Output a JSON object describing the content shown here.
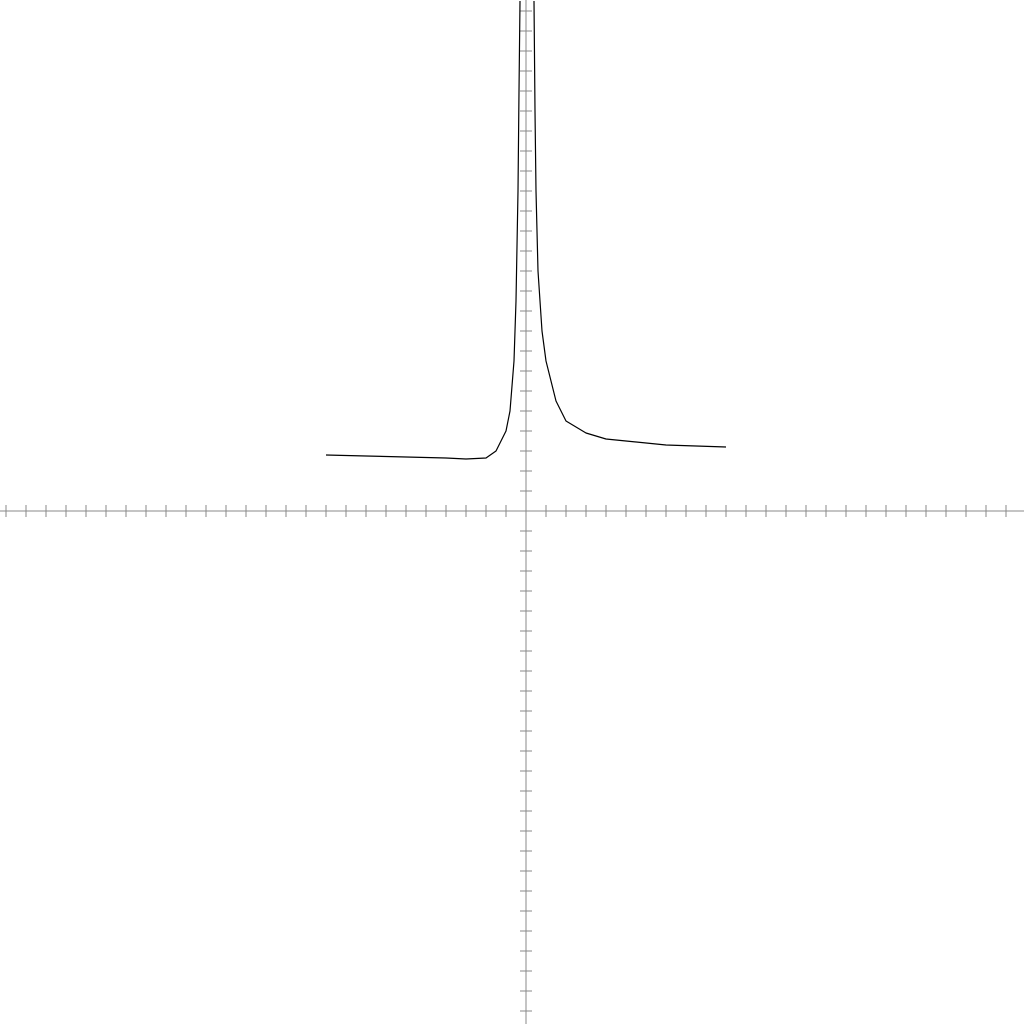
{
  "chart_data": {
    "type": "line",
    "x": [
      -10,
      -8,
      -6,
      -4,
      -3,
      -2,
      -1.5,
      -1,
      -0.8,
      -0.6,
      -0.5,
      -0.4,
      -0.35,
      -0.3,
      null,
      0.4,
      0.45,
      0.5,
      0.6,
      0.8,
      1,
      1.5,
      2,
      3,
      4,
      5,
      7,
      10
    ],
    "series": [
      {
        "color": "#000000",
        "values": [
          2.8,
          2.75,
          2.7,
          2.65,
          2.6,
          2.65,
          3.0,
          4.0,
          5.0,
          7.5,
          10.5,
          16,
          21,
          25.5,
          null,
          25.5,
          20,
          16,
          12,
          9,
          7.5,
          5.5,
          4.5,
          3.9,
          3.6,
          3.5,
          3.3,
          3.2
        ]
      }
    ],
    "xlim": [
      -26.3,
      24.9
    ],
    "ylim": [
      -25.65,
      25.55
    ],
    "xticks": [
      -26,
      -25,
      -24,
      -23,
      -22,
      -21,
      -20,
      -19,
      -18,
      -17,
      -16,
      -15,
      -14,
      -13,
      -12,
      -11,
      -10,
      -9,
      -8,
      -7,
      -6,
      -5,
      -4,
      -3,
      -2,
      -1,
      1,
      2,
      3,
      4,
      5,
      6,
      7,
      8,
      9,
      10,
      11,
      12,
      13,
      14,
      15,
      16,
      17,
      18,
      19,
      20,
      21,
      22,
      23,
      24
    ],
    "yticks": [
      -25,
      -24,
      -23,
      -22,
      -21,
      -20,
      -19,
      -18,
      -17,
      -16,
      -15,
      -14,
      -13,
      -12,
      -11,
      -10,
      -9,
      -8,
      -7,
      -6,
      -5,
      -4,
      -3,
      -2,
      -1,
      1,
      2,
      3,
      4,
      5,
      6,
      7,
      8,
      9,
      10,
      11,
      12,
      13,
      14,
      15,
      16,
      17,
      18,
      19,
      20,
      21,
      22,
      23,
      24,
      25
    ],
    "axis_color": "#888888"
  }
}
